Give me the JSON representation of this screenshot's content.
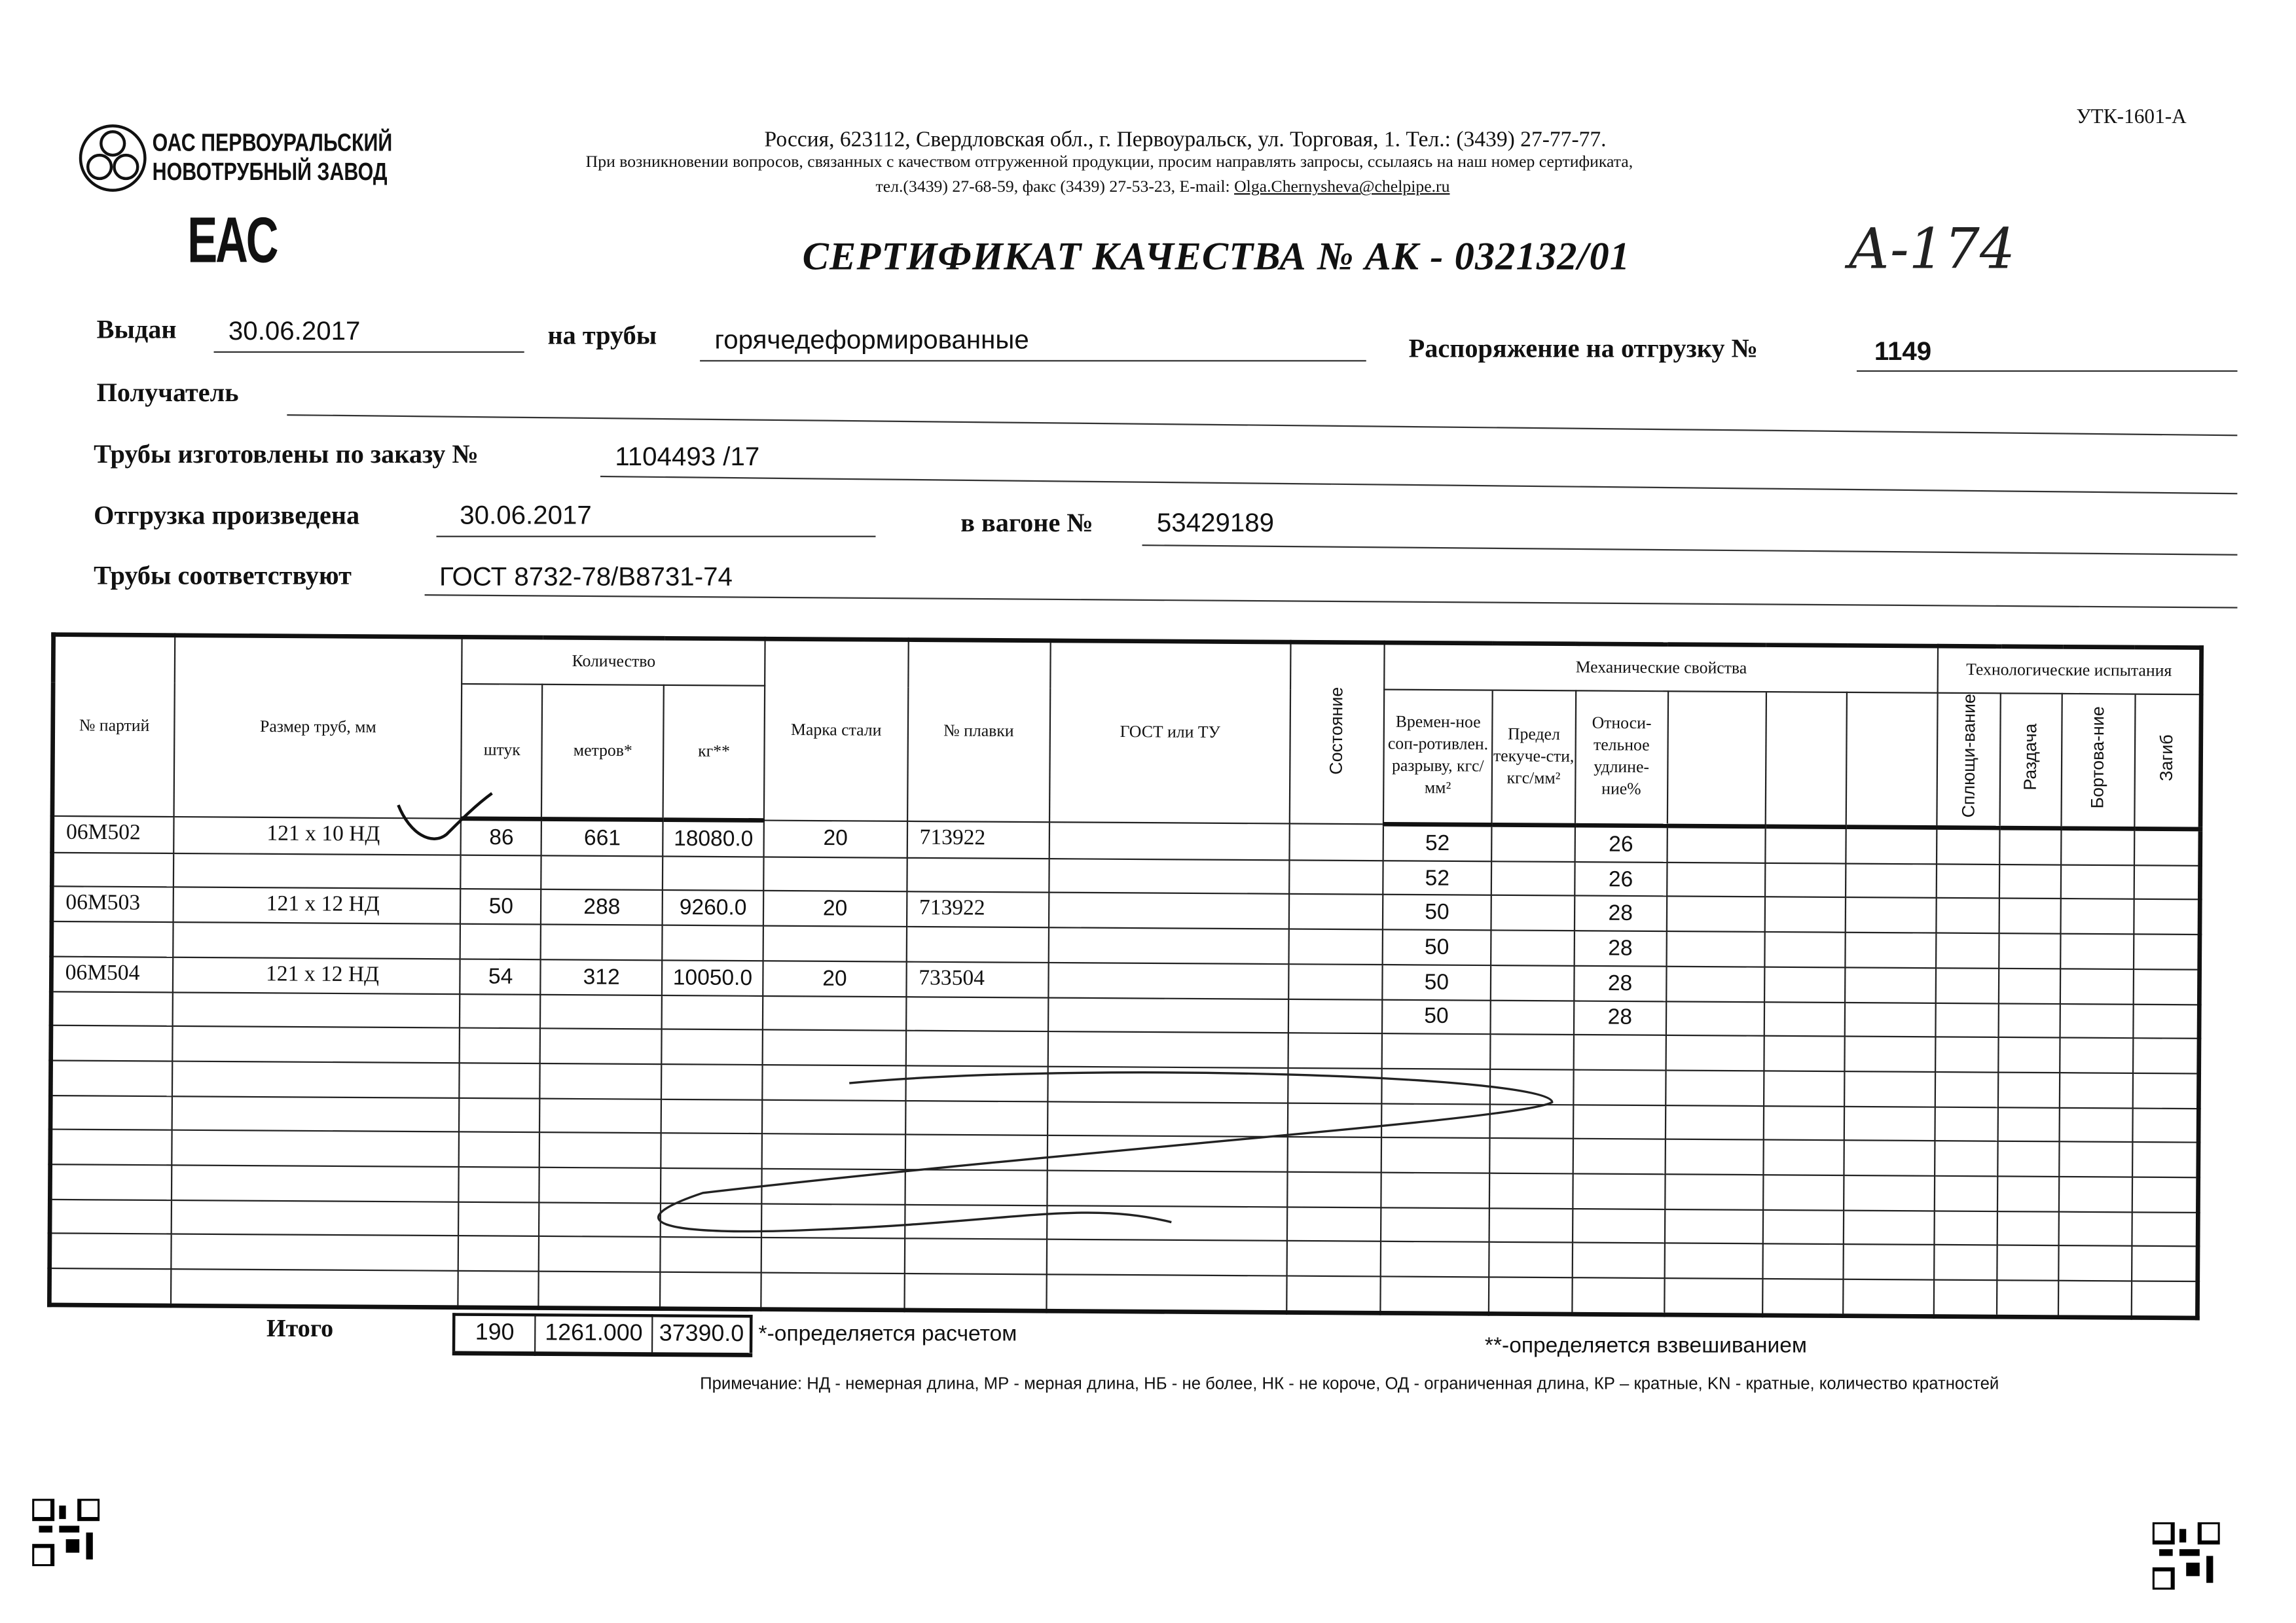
{
  "form_code": "УТК-1601-А",
  "company": {
    "name_line1": "ОАС ПЕРВОУРАЛЬСКИЙ",
    "name_line2": "НОВОТРУБНЫЙ ЗАВОД",
    "mark": "EAC"
  },
  "header": {
    "address": "Россия, 623112, Свердловская обл., г. Первоуральск, ул. Торговая, 1. Тел.: (3439) 27-77-77.",
    "notice": "При возникновении вопросов, связанных с качеством отгруженной продукции, просим направлять запросы, ссылаясь на наш номер сертификата,",
    "contacts": "тел.(3439) 27-68-59, факс (3439) 27-53-23,  E-mail: ",
    "email": "Olga.Chernysheva@chelpipe.ru"
  },
  "title": "СЕРТИФИКАТ КАЧЕСТВА   №  АК -  032132/01",
  "handwritten_note": "А-174",
  "fields": {
    "issued_label": "Выдан",
    "issued_value": "30.06.2017",
    "pipes_label": "на трубы",
    "pipes_value": "горячедеформированные",
    "order_label": "Распоряжение на отгрузку №",
    "order_value": "1149",
    "recipient_label": "Получатель",
    "recipient_value": "",
    "made_label": "Трубы изготовлены по заказу №",
    "made_value": "1104493   /17",
    "shipped_label": "Отгрузка произведена",
    "shipped_value": "30.06.2017",
    "wagon_label": "в вагоне №",
    "wagon_value": "53429189",
    "conform_label": "Трубы соответствуют",
    "conform_value": "ГОСТ 8732-78/В8731-74"
  },
  "table": {
    "headers": {
      "batch": "№ партий",
      "size": "Размер труб, мм",
      "quantity": "Количество",
      "pcs": "штук",
      "meters": "метров*",
      "kg": "кг**",
      "steel": "Марка стали",
      "heat": "№ плавки",
      "gost": "ГОСТ или ТУ",
      "state": "Состояние",
      "mech": "Механические свойства",
      "tensile": "Времен-ное соп-ротивлен. разрыву, кгс/мм²",
      "yield": "Предел текуче-сти, кгс/мм²",
      "elong": "Относи-тельное удлине-ние%",
      "tech": "Технологические испытания",
      "flatten": "Сплющи-вание",
      "expand": "Раздача",
      "flange": "Бортова-ние",
      "bend": "Загиб"
    },
    "rows": [
      {
        "batch": "06М502",
        "size": "121 х 10 НД",
        "pcs": "86",
        "meters": "661",
        "kg": "18080.0",
        "steel": "20",
        "heat": "713922",
        "tensile": "52",
        "elong": "26"
      },
      {
        "batch": "",
        "size": "",
        "pcs": "",
        "meters": "",
        "kg": "",
        "steel": "",
        "heat": "",
        "tensile": "52",
        "elong": "26"
      },
      {
        "batch": "06М503",
        "size": "121 х 12 НД",
        "pcs": "50",
        "meters": "288",
        "kg": "9260.0",
        "steel": "20",
        "heat": "713922",
        "tensile": "50",
        "elong": "28"
      },
      {
        "batch": "",
        "size": "",
        "pcs": "",
        "meters": "",
        "kg": "",
        "steel": "",
        "heat": "",
        "tensile": "50",
        "elong": "28"
      },
      {
        "batch": "06М504",
        "size": "121 х 12 НД",
        "pcs": "54",
        "meters": "312",
        "kg": "10050.0",
        "steel": "20",
        "heat": "733504",
        "tensile": "50",
        "elong": "28"
      },
      {
        "batch": "",
        "size": "",
        "pcs": "",
        "meters": "",
        "kg": "",
        "steel": "",
        "heat": "",
        "tensile": "50",
        "elong": "28"
      },
      {},
      {},
      {},
      {},
      {},
      {},
      {},
      {}
    ],
    "totals_label": "Итого",
    "totals": {
      "pcs": "190",
      "meters": "1261.000",
      "kg": "37390.0"
    }
  },
  "footnotes": {
    "calc": "*-определяется расчетом",
    "weigh": "**-определяется взвешиванием",
    "remark": "Примечание: НД - немерная длина, МР - мерная длина, НБ - не более, НК - не короче, ОД - ограниченная длина, КР – кратные, KN - кратные, количество кратностей"
  }
}
